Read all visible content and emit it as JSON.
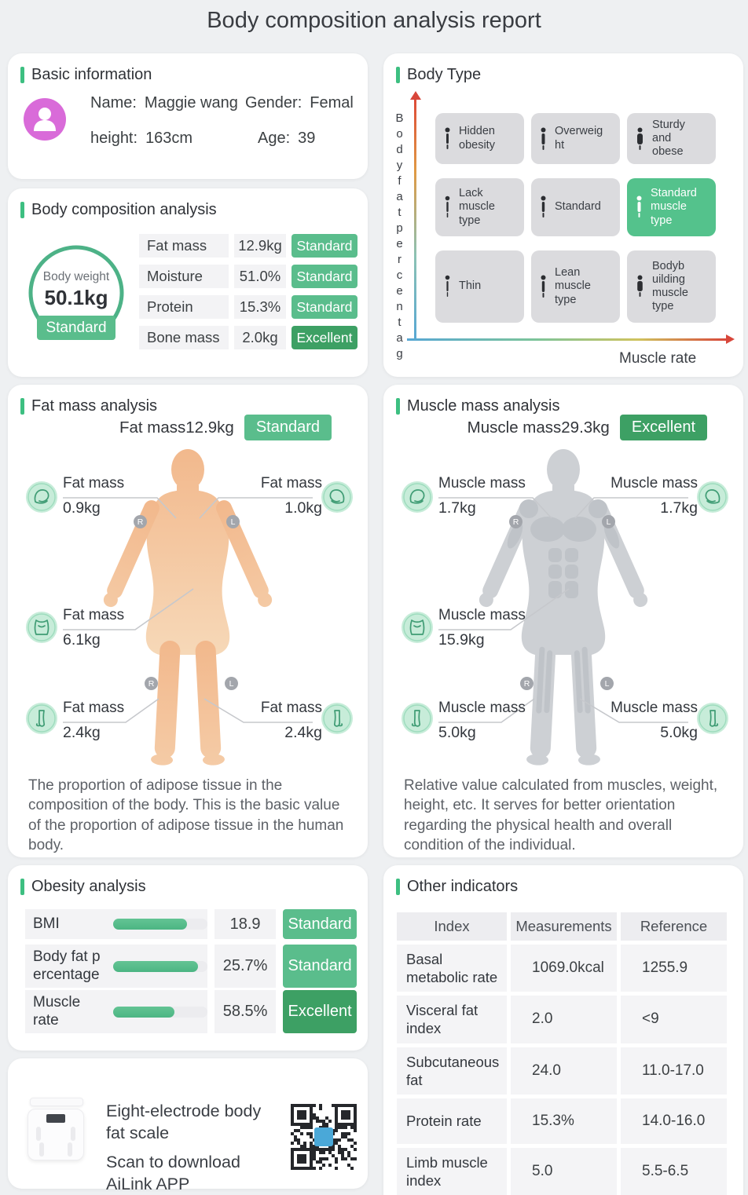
{
  "title": "Body composition analysis report",
  "basic": {
    "title": "Basic information",
    "name_label": "Name:",
    "name_value": "Maggie wang",
    "gender_label": "Gender:",
    "gender_value": "Femal",
    "height_label": "height:",
    "height_value": "163cm",
    "age_label": "Age:",
    "age_value": "39"
  },
  "body_type": {
    "title": "Body Type",
    "y_axis": "Bodyfatpercentag",
    "x_axis": "Muscle rate",
    "cells": [
      {
        "label": "Hidden\nobesity"
      },
      {
        "label": "Overweig\nht"
      },
      {
        "label": "Sturdy\nand\nobese"
      },
      {
        "label": "Lack\nmuscle\ntype"
      },
      {
        "label": "Standard"
      },
      {
        "label": "Standard\nmuscle\ntype"
      },
      {
        "label": "Thin"
      },
      {
        "label": "Lean\nmuscle\ntype"
      },
      {
        "label": "Bodyb\nuilding\nmuscle\ntype"
      }
    ],
    "selected_cell": "Standard muscle type"
  },
  "composition": {
    "title": "Body composition analysis",
    "gauge_label": "Body weight",
    "gauge_value": "50.1kg",
    "gauge_badge": "Standard",
    "rows": [
      {
        "label": "Fat mass",
        "value": "12.9kg",
        "badge": "Standard"
      },
      {
        "label": "Moisture",
        "value": "51.0%",
        "badge": "Standard"
      },
      {
        "label": "Protein",
        "value": "15.3%",
        "badge": "Standard"
      },
      {
        "label": "Bone mass",
        "value": "2.0kg",
        "badge": "Excellent"
      }
    ]
  },
  "fat": {
    "title": "Fat mass analysis",
    "summary_label": "Fat mass",
    "summary_value": "12.9kg",
    "summary_badge": "Standard",
    "left_arm_label": "Fat mass",
    "left_arm_value": "0.9kg",
    "right_arm_label": "Fat mass",
    "right_arm_value": "1.0kg",
    "trunk_label": "Fat mass",
    "trunk_value": "6.1kg",
    "left_leg_label": "Fat mass",
    "left_leg_value": "2.4kg",
    "right_leg_label": "Fat mass",
    "right_leg_value": "2.4kg",
    "description": "The proportion of adipose tissue in the composition of the body. This is the basic value of the proportion of adipose tissue in the human body."
  },
  "muscle": {
    "title": "Muscle mass analysis",
    "summary_label": "Muscle mass",
    "summary_value": "29.3kg",
    "summary_badge": "Excellent",
    "left_arm_label": "Muscle mass",
    "left_arm_value": "1.7kg",
    "right_arm_label": "Muscle mass",
    "right_arm_value": "1.7kg",
    "trunk_label": "Muscle mass",
    "trunk_value": "15.9kg",
    "left_leg_label": "Muscle mass",
    "left_leg_value": "5.0kg",
    "right_leg_label": "Muscle mass",
    "right_leg_value": "5.0kg",
    "description": "Relative value calculated from muscles, weight, height, etc. It serves for better orientation regarding the physical health and overall condition of the individual."
  },
  "markers": {
    "r": "R",
    "l": "L"
  },
  "obesity": {
    "title": "Obesity analysis",
    "rows": [
      {
        "label": "BMI",
        "value": "18.9",
        "badge": "Standard",
        "bar_pct": 78
      },
      {
        "label": "Body fat p\nercentage",
        "value": "25.7%",
        "badge": "Standard",
        "bar_pct": 90
      },
      {
        "label": "Muscle\nrate",
        "value": "58.5%",
        "badge": "Excellent",
        "bar_pct": 65
      }
    ]
  },
  "other": {
    "title": "Other indicators",
    "headers": [
      "Index",
      "Measurements",
      "Reference"
    ],
    "rows": [
      [
        "Basal metabolic rate",
        "1069.0kcal",
        "1255.9"
      ],
      [
        "Visceral fat index",
        "2.0",
        "<9"
      ],
      [
        "Subcutaneous fat",
        "24.0",
        "11.0-17.0"
      ],
      [
        "Protein rate",
        "15.3%",
        "14.0-16.0"
      ],
      [
        "Limb muscle index",
        "5.0",
        "5.5-6.5"
      ]
    ]
  },
  "footer": {
    "product": "Eight-electrode body fat scale",
    "scan": "Scan to download AiLink APP"
  },
  "colors": {
    "accent": "#3dbf81",
    "badge_standard": "#5abd8c",
    "badge_excellent": "#3da064",
    "avatar_pink": "#d96bd9",
    "qr_center": "#4aa8d8"
  }
}
